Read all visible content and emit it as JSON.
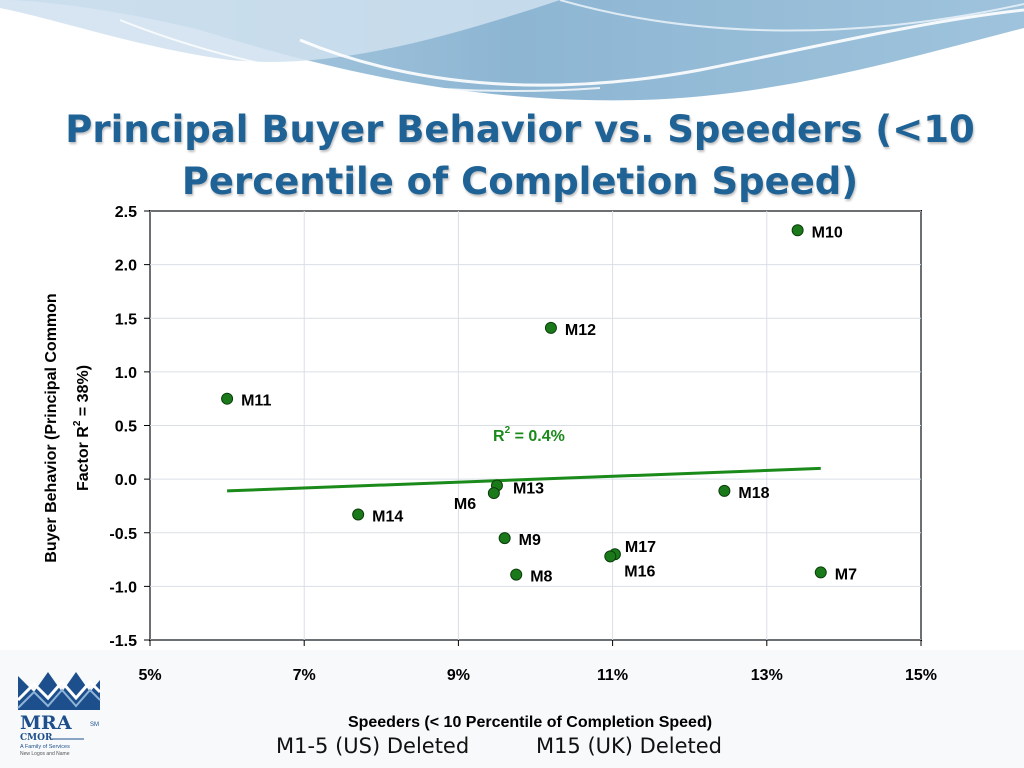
{
  "slide": {
    "title_line1": "Principal Buyer Behavior vs. Speeders (<10",
    "title_line2": "Percentile of Completion Speed)",
    "footnote_a": "M1-5 (US) Deleted",
    "footnote_b": "M15 (UK) Deleted"
  },
  "logo": {
    "name": "MRA",
    "sm": "SM",
    "sub": "CMOR",
    "line1": "A Family of Services",
    "line2": "New Logos and Name",
    "colors": {
      "blue": "#1d4f8c",
      "gray": "#8c8c8c"
    }
  },
  "chart_data": {
    "type": "scatter",
    "xlabel": "Speeders (< 10 Percentile of Completion Speed)",
    "ylabel_line1": "Buyer Behavior (Principal Common",
    "ylabel_line2": "Factor R",
    "ylabel_sup": "2",
    "ylabel_line2_end": " = 38%)",
    "xlim": [
      0.05,
      0.15
    ],
    "ylim": [
      -1.5,
      2.5
    ],
    "x_ticks": [
      {
        "value": 0.05,
        "label": "5%"
      },
      {
        "value": 0.07,
        "label": "7%"
      },
      {
        "value": 0.09,
        "label": "9%"
      },
      {
        "value": 0.11,
        "label": "11%"
      },
      {
        "value": 0.13,
        "label": "13%"
      },
      {
        "value": 0.15,
        "label": "15%"
      }
    ],
    "y_ticks": [
      {
        "value": 2.5,
        "label": "2.5"
      },
      {
        "value": 2.0,
        "label": "2.0"
      },
      {
        "value": 1.5,
        "label": "1.5"
      },
      {
        "value": 1.0,
        "label": "1.0"
      },
      {
        "value": 0.5,
        "label": "0.5"
      },
      {
        "value": 0.0,
        "label": "0.0"
      },
      {
        "value": -0.5,
        "label": "-0.5"
      },
      {
        "value": -1.0,
        "label": "-1.0"
      },
      {
        "value": -1.5,
        "label": "-1.5"
      }
    ],
    "grid": true,
    "points": [
      {
        "label": "M10",
        "x": 0.134,
        "y": 2.32
      },
      {
        "label": "M12",
        "x": 0.102,
        "y": 1.41
      },
      {
        "label": "M11",
        "x": 0.06,
        "y": 0.75
      },
      {
        "label": "M13",
        "x": 0.095,
        "y": -0.06
      },
      {
        "label": "M6",
        "x": 0.0946,
        "y": -0.13
      },
      {
        "label": "M18",
        "x": 0.1245,
        "y": -0.11
      },
      {
        "label": "M14",
        "x": 0.077,
        "y": -0.33
      },
      {
        "label": "M9",
        "x": 0.096,
        "y": -0.55
      },
      {
        "label": "M17",
        "x": 0.1103,
        "y": -0.7
      },
      {
        "label": "M16",
        "x": 0.1097,
        "y": -0.72
      },
      {
        "label": "M8",
        "x": 0.0975,
        "y": -0.89
      },
      {
        "label": "M7",
        "x": 0.137,
        "y": -0.87
      }
    ],
    "trendline": {
      "x": [
        0.06,
        0.137
      ],
      "y": [
        -0.11,
        0.1
      ],
      "r2_text": "R",
      "r2_sup": "2",
      "r2_value": " = 0.4%",
      "color": "#1a8a1a"
    },
    "marker_color": "#1a7a1a"
  }
}
